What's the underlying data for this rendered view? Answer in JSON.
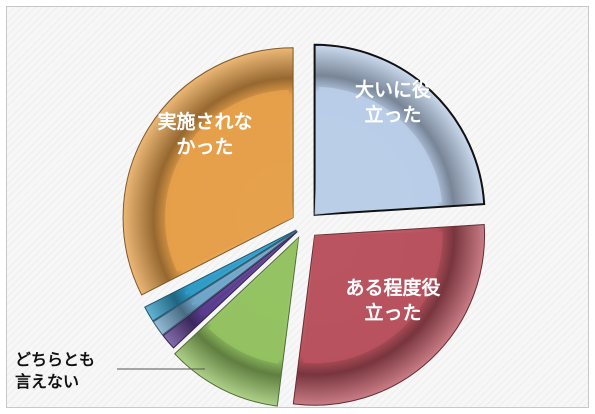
{
  "chart_data": {
    "type": "pie",
    "title": "",
    "slices": [
      {
        "label": "大いに役立った",
        "lines": [
          "大いに役",
          "立った"
        ],
        "value": 24,
        "color": "#b9cde8"
      },
      {
        "label": "ある程度役立った",
        "lines": [
          "ある程度役",
          "立った"
        ],
        "value": 28,
        "color": "#b8525e"
      },
      {
        "label": "どちらとも言えない",
        "lines": [
          "どちらとも",
          "言えない"
        ],
        "value": 11,
        "color": "#93c262"
      },
      {
        "label": "",
        "lines": [],
        "value": 1.5,
        "color": "#5b3d8f"
      },
      {
        "label": "",
        "lines": [],
        "value": 1.5,
        "color": "#6fa5c9"
      },
      {
        "label": "",
        "lines": [],
        "value": 1.5,
        "color": "#2f9bc6"
      },
      {
        "label": "実施されなかった",
        "lines": [
          "実施されな",
          "かった"
        ],
        "value": 32.5,
        "color": "#e6a04a"
      }
    ]
  }
}
